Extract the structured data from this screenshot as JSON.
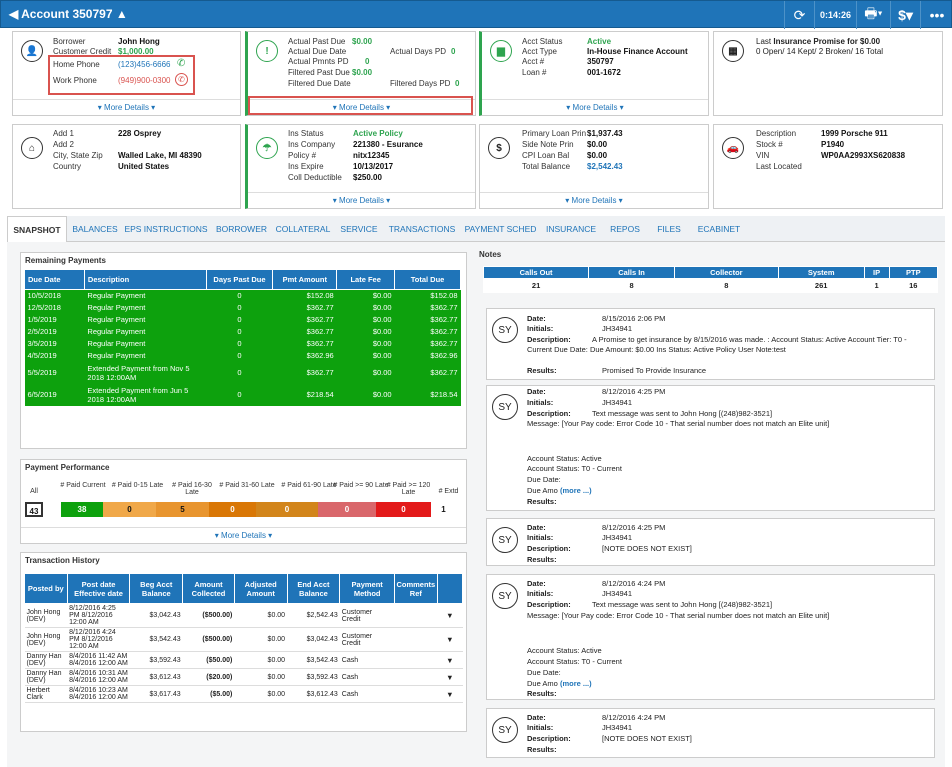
{
  "header": {
    "title": "Account 350797",
    "time": "0:14:26"
  },
  "borrower": {
    "lbl_borrower": "Borrower",
    "borrower": "John Hong",
    "lbl_credit": "Customer Credit",
    "credit": "$1,000.00",
    "lbl_home": "Home Phone",
    "home": "(123)456-6666",
    "lbl_work": "Work Phone",
    "work": "(949)900-0300",
    "more": "▾ More Details ▾"
  },
  "due": {
    "l1": "Actual Past Due",
    "v1": "$0.00",
    "l2": "Actual Due Date",
    "l3": "Actual Days PD",
    "v3": "0",
    "l4": "Actual Pmnts PD",
    "v4": "0",
    "l5": "Filtered Past Due",
    "v5": "$0.00",
    "l6": "Filtered Due Date",
    "l7": "Filtered Days PD",
    "v7": "0",
    "more": "▾ More Details ▾"
  },
  "acct": {
    "l1": "Acct Status",
    "v1": "Active",
    "l2": "Acct Type",
    "v2": "In-House Finance Account",
    "l3": "Acct #",
    "v3": "350797",
    "l4": "Loan #",
    "v4": "001-1672",
    "more": "▾ More Details ▾"
  },
  "promise": {
    "line1_pre": "Last ",
    "line1_bold": "Insurance Promise for $0.00",
    "line2": "0 Open/ 14 Kept/ 2 Broken/ 16 Total"
  },
  "address": {
    "l1": "Add 1",
    "v1": "228 Osprey",
    "l2": "Add 2",
    "l3": "City, State Zip",
    "v3": "Walled Lake, MI 48390",
    "l4": "Country",
    "v4": "United States"
  },
  "ins": {
    "l1": "Ins Status",
    "v1": "Active Policy",
    "l2": "Ins Company",
    "v2": "221380 - Esurance",
    "l3": "Policy #",
    "v3": "nitx12345",
    "l4": "Ins Expire",
    "v4": "10/13/2017",
    "l5": "Coll Deductible",
    "v5": "$250.00",
    "more": "▾ More Details ▾"
  },
  "loan": {
    "l1": "Primary Loan Prin",
    "v1": "$1,937.43",
    "l2": "Side Note Prin",
    "v2": "$0.00",
    "l3": "CPI Loan Bal",
    "v3": "$0.00",
    "l4": "Total Balance",
    "v4": "$2,542.43",
    "more": "▾ More Details ▾"
  },
  "vehicle": {
    "l1": "Description",
    "v1": "1999 Porsche 911",
    "l2": "Stock #",
    "v2": "P1940",
    "l3": "VIN",
    "v3": "WP0AA2993XS620838",
    "l4": "Last Located"
  },
  "tabs": [
    "SNAPSHOT",
    "BALANCES",
    "EPS INSTRUCTIONS",
    "BORROWER",
    "COLLATERAL",
    "SERVICE",
    "TRANSACTIONS",
    "PAYMENT SCHED",
    "INSURANCE",
    "REPOS",
    "FILES",
    "ECABINET"
  ],
  "remaining": {
    "title": "Remaining Payments",
    "headers": [
      "Due Date",
      "Description",
      "Days Past Due",
      "Pmt Amount",
      "Late Fee",
      "Total Due"
    ],
    "rows": [
      [
        "10/5/2018",
        "Regular Payment",
        "0",
        "$152.08",
        "$0.00",
        "$152.08"
      ],
      [
        "12/5/2018",
        "Regular Payment",
        "0",
        "$362.77",
        "$0.00",
        "$362.77"
      ],
      [
        "1/5/2019",
        "Regular Payment",
        "0",
        "$362.77",
        "$0.00",
        "$362.77"
      ],
      [
        "2/5/2019",
        "Regular Payment",
        "0",
        "$362.77",
        "$0.00",
        "$362.77"
      ],
      [
        "3/5/2019",
        "Regular Payment",
        "0",
        "$362.77",
        "$0.00",
        "$362.77"
      ],
      [
        "4/5/2019",
        "Regular Payment",
        "0",
        "$362.96",
        "$0.00",
        "$362.96"
      ],
      [
        "5/5/2019",
        "Extended Payment from Nov 5 2018 12:00AM",
        "0",
        "$362.77",
        "$0.00",
        "$362.77"
      ],
      [
        "6/5/2019",
        "Extended Payment from Jun 5 2018 12:00AM",
        "0",
        "$218.54",
        "$0.00",
        "$218.54"
      ]
    ]
  },
  "performance": {
    "title": "Payment Performance",
    "headers": [
      "All",
      "# Paid Current",
      "# Paid 0-15 Late",
      "# Paid 16-30 Late",
      "# Paid 31-60 Late",
      "# Paid 61-90 Late",
      "# Paid >= 90 Late",
      "# Paid >= 120 Late",
      "# Extd"
    ],
    "values": [
      "43",
      "38",
      "0",
      "5",
      "0",
      "0",
      "0",
      "0",
      "1"
    ],
    "colors": [
      "#fff",
      "#0da10d",
      "#f0a849",
      "#e8952f",
      "#d97706",
      "#d2851b",
      "#d9676b",
      "#e31a1a",
      "#fff"
    ],
    "more": "▾ More Details ▾"
  },
  "history": {
    "title": "Transaction History",
    "headers": [
      "Posted by",
      "Post date Effective date",
      "Beg Acct Balance",
      "Amount Collected",
      "Adjusted Amount",
      "End Acct Balance",
      "Payment Method",
      "Comments Ref"
    ],
    "rows": [
      [
        "John Hong (DEV)",
        "8/12/2016 4:25 PM 8/12/2016 12:00 AM",
        "$3,042.43",
        "($500.00)",
        "$0.00",
        "$2,542.43",
        "Customer Credit",
        ""
      ],
      [
        "John Hong (DEV)",
        "8/12/2016 4:24 PM 8/12/2016 12:00 AM",
        "$3,542.43",
        "($500.00)",
        "$0.00",
        "$3,042.43",
        "Customer Credit",
        ""
      ],
      [
        "Danny Han (DEV)",
        "8/4/2016 11:42 AM 8/4/2016 12:00 AM",
        "$3,592.43",
        "($50.00)",
        "$0.00",
        "$3,542.43",
        "Cash",
        ""
      ],
      [
        "Danny Han (DEV)",
        "8/4/2016 10:31 AM 8/4/2016 12:00 AM",
        "$3,612.43",
        "($20.00)",
        "$0.00",
        "$3,592.43",
        "Cash",
        ""
      ],
      [
        "Herbert Clark",
        "8/4/2016 10:23 AM 8/4/2016 12:00 AM",
        "$3,617.43",
        "($5.00)",
        "$0.00",
        "$3,612.43",
        "Cash",
        ""
      ]
    ]
  },
  "notes": {
    "title": "Notes",
    "stat_headers": [
      "Calls Out",
      "Calls In",
      "Collector",
      "System",
      "IP",
      "PTP"
    ],
    "stat_values": [
      "21",
      "8",
      "8",
      "261",
      "1",
      "16"
    ],
    "l_date": "Date:",
    "l_init": "Initials:",
    "l_desc": "Description:",
    "l_res": "Results:",
    "more": "(more ...)",
    "n1": {
      "date": "8/15/2016 2:06 PM",
      "init": "JH34941",
      "desc1": "A Promise to get insurance by 8/15/2016 was made. : Account Status: Active Account Tier: T0 -",
      "desc2": "Current Due Date: Due Amount: $0.00 Ins Status: Active Policy User Note:test",
      "res": "Promised To Provide Insurance"
    },
    "n2": {
      "date": "8/12/2016 4:25 PM",
      "init": "JH34941",
      "desc": "Text message was sent to John Hong [(248)982-3521]",
      "msg": "Message: [Your Pay code: Error Code 10 - That serial number does not match an Elite unit]",
      "s1": "Account Status: Active",
      "s2": "Account Status: T0 - Current",
      "s3": "Due Date:",
      "s4": "Due Amo"
    },
    "n3": {
      "date": "8/12/2016 4:25 PM",
      "init": "JH34941",
      "desc": "[NOTE DOES NOT EXIST]"
    },
    "n4": {
      "date": "8/12/2016 4:24 PM",
      "init": "JH34941",
      "desc": "Text message was sent to John Hong [(248)982-3521]",
      "msg": "Message: [Your Pay code: Error Code 10 - That serial number does not match an Elite unit]",
      "s1": "Account Status: Active",
      "s2": "Account Status: T0 - Current",
      "s3": "Due Date:",
      "s4": "Due Amo"
    },
    "n5": {
      "date": "8/12/2016 4:24 PM",
      "init": "JH34941",
      "desc": "[NOTE DOES NOT EXIST]"
    },
    "avatar": "SY"
  }
}
